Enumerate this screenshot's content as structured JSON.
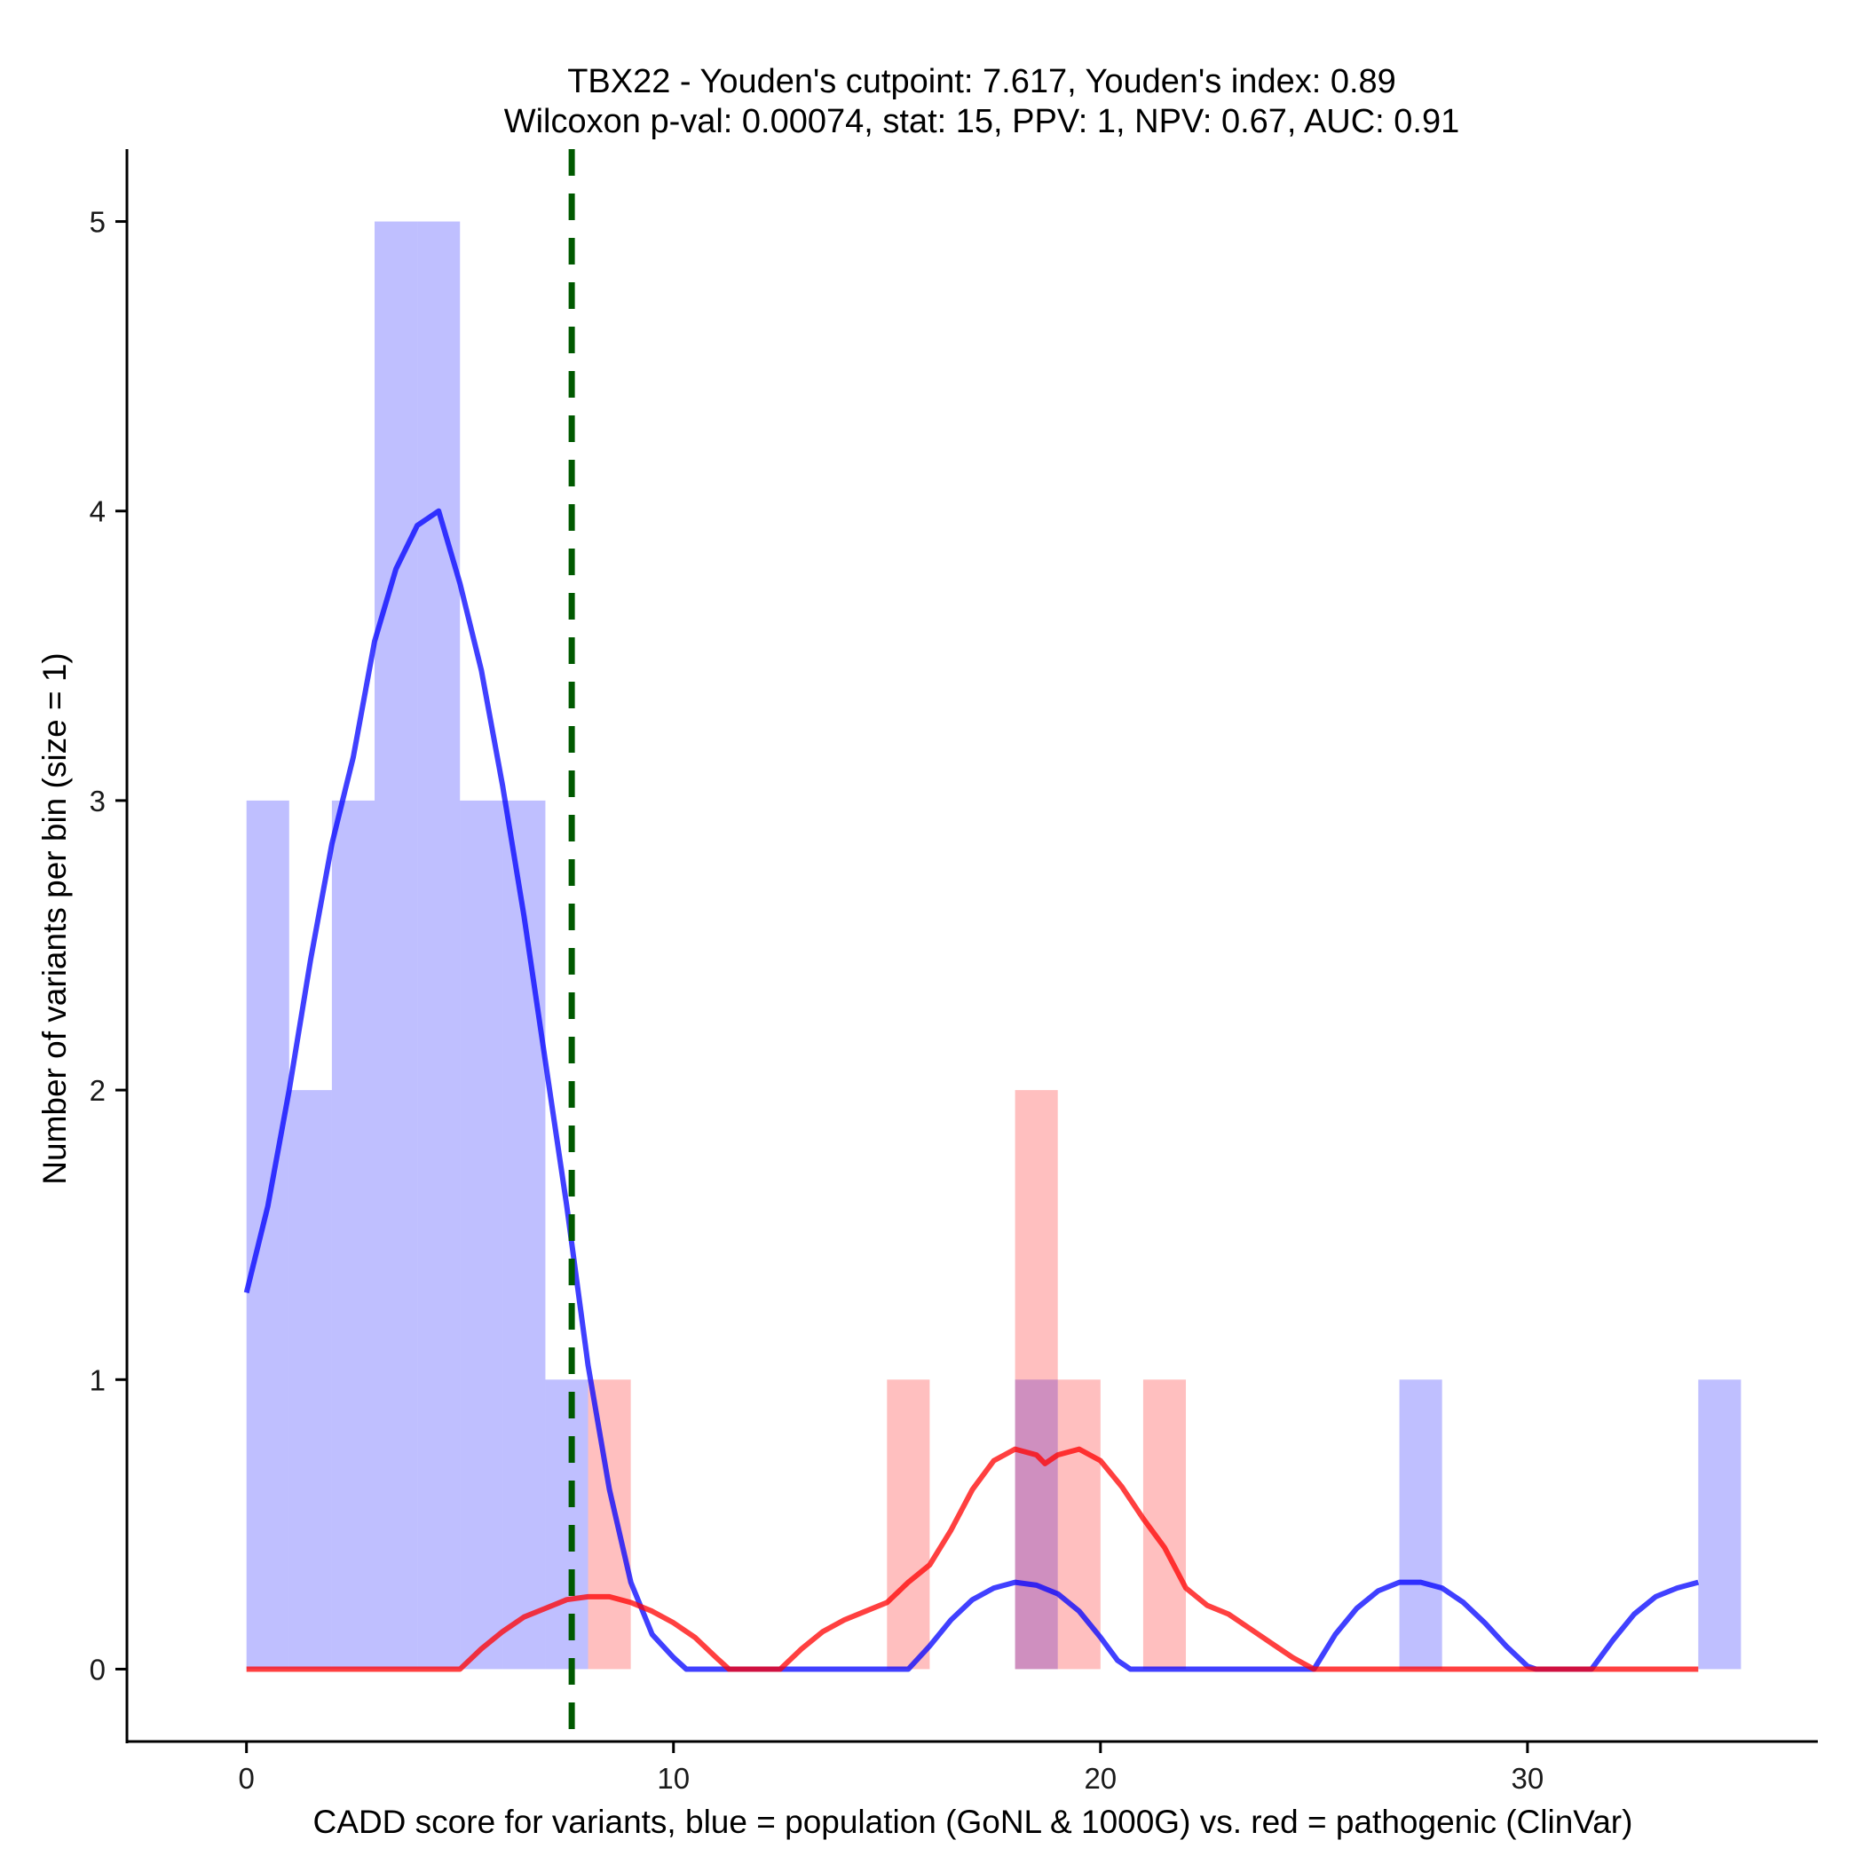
{
  "chart_data": {
    "type": "bar",
    "title_line1": "TBX22 - Youden's cutpoint: 7.617, Youden's index: 0.89",
    "title_line2": "Wilcoxon p-val: 0.00074, stat: 15, PPV: 1, NPV: 0.67, AUC: 0.91",
    "xlabel": "CADD score for variants, blue = population (GoNL & 1000G) vs. red = pathogenic (ClinVar)",
    "ylabel": "Number of variants per bin (size = 1)",
    "xlim": [
      -2.8,
      36.8
    ],
    "ylim": [
      -0.25,
      5.25
    ],
    "x_ticks": [
      0,
      10,
      20,
      30
    ],
    "y_ticks": [
      0,
      1,
      2,
      3,
      4,
      5
    ],
    "bin_width": 1,
    "cutpoint": 7.617,
    "series": [
      {
        "name": "population (GoNL & 1000G)",
        "color": "#0000ff",
        "bins": [
          {
            "x0": 0,
            "count": 3
          },
          {
            "x0": 1,
            "count": 2
          },
          {
            "x0": 2,
            "count": 3
          },
          {
            "x0": 3,
            "count": 5
          },
          {
            "x0": 4,
            "count": 5
          },
          {
            "x0": 5,
            "count": 3
          },
          {
            "x0": 6,
            "count": 3
          },
          {
            "x0": 7,
            "count": 1
          },
          {
            "x0": 18,
            "count": 1
          },
          {
            "x0": 27,
            "count": 1
          },
          {
            "x0": 34,
            "count": 1
          }
        ],
        "density": [
          [
            0,
            1.3
          ],
          [
            0.5,
            1.6
          ],
          [
            1,
            2.0
          ],
          [
            1.5,
            2.45
          ],
          [
            2,
            2.85
          ],
          [
            2.5,
            3.15
          ],
          [
            3,
            3.55
          ],
          [
            3.5,
            3.8
          ],
          [
            4,
            3.95
          ],
          [
            4.5,
            4.0
          ],
          [
            5,
            3.75
          ],
          [
            5.5,
            3.45
          ],
          [
            6,
            3.05
          ],
          [
            6.5,
            2.6
          ],
          [
            7,
            2.1
          ],
          [
            7.5,
            1.6
          ],
          [
            8,
            1.05
          ],
          [
            8.5,
            0.62
          ],
          [
            9,
            0.3
          ],
          [
            9.5,
            0.12
          ],
          [
            10,
            0.04
          ],
          [
            10.3,
            0
          ],
          [
            15.5,
            0
          ],
          [
            16,
            0.08
          ],
          [
            16.5,
            0.17
          ],
          [
            17,
            0.24
          ],
          [
            17.5,
            0.28
          ],
          [
            18,
            0.3
          ],
          [
            18.5,
            0.29
          ],
          [
            19,
            0.26
          ],
          [
            19.5,
            0.2
          ],
          [
            20,
            0.11
          ],
          [
            20.4,
            0.03
          ],
          [
            20.7,
            0
          ],
          [
            25,
            0
          ],
          [
            25.5,
            0.12
          ],
          [
            26,
            0.21
          ],
          [
            26.5,
            0.27
          ],
          [
            27,
            0.3
          ],
          [
            27.5,
            0.3
          ],
          [
            28,
            0.28
          ],
          [
            28.5,
            0.23
          ],
          [
            29,
            0.16
          ],
          [
            29.5,
            0.08
          ],
          [
            30,
            0.01
          ],
          [
            30.2,
            0
          ],
          [
            31.5,
            0
          ],
          [
            32,
            0.1
          ],
          [
            32.5,
            0.19
          ],
          [
            33,
            0.25
          ],
          [
            33.5,
            0.28
          ],
          [
            34,
            0.3
          ]
        ]
      },
      {
        "name": "pathogenic (ClinVar)",
        "color": "#ff0000",
        "bins": [
          {
            "x0": 8,
            "count": 1
          },
          {
            "x0": 15,
            "count": 1
          },
          {
            "x0": 18,
            "count": 2
          },
          {
            "x0": 19,
            "count": 1
          },
          {
            "x0": 21,
            "count": 1
          }
        ],
        "density": [
          [
            0,
            0
          ],
          [
            5,
            0
          ],
          [
            5.5,
            0.07
          ],
          [
            6,
            0.13
          ],
          [
            6.5,
            0.18
          ],
          [
            7,
            0.21
          ],
          [
            7.5,
            0.24
          ],
          [
            8,
            0.25
          ],
          [
            8.5,
            0.25
          ],
          [
            9,
            0.23
          ],
          [
            9.5,
            0.2
          ],
          [
            10,
            0.16
          ],
          [
            10.5,
            0.11
          ],
          [
            11,
            0.04
          ],
          [
            11.3,
            0
          ],
          [
            12.5,
            0
          ],
          [
            13,
            0.07
          ],
          [
            13.5,
            0.13
          ],
          [
            14,
            0.17
          ],
          [
            14.5,
            0.2
          ],
          [
            15,
            0.23
          ],
          [
            15.5,
            0.3
          ],
          [
            16,
            0.36
          ],
          [
            16.5,
            0.48
          ],
          [
            17,
            0.62
          ],
          [
            17.5,
            0.72
          ],
          [
            18,
            0.76
          ],
          [
            18.5,
            0.74
          ],
          [
            18.7,
            0.71
          ],
          [
            19,
            0.74
          ],
          [
            19.5,
            0.76
          ],
          [
            20,
            0.72
          ],
          [
            20.5,
            0.63
          ],
          [
            21,
            0.52
          ],
          [
            21.5,
            0.42
          ],
          [
            22,
            0.28
          ],
          [
            22.5,
            0.22
          ],
          [
            23,
            0.19
          ],
          [
            23.5,
            0.14
          ],
          [
            24,
            0.09
          ],
          [
            24.5,
            0.04
          ],
          [
            25,
            0
          ],
          [
            34,
            0
          ]
        ]
      }
    ],
    "cutpoint_color": "#005900"
  }
}
